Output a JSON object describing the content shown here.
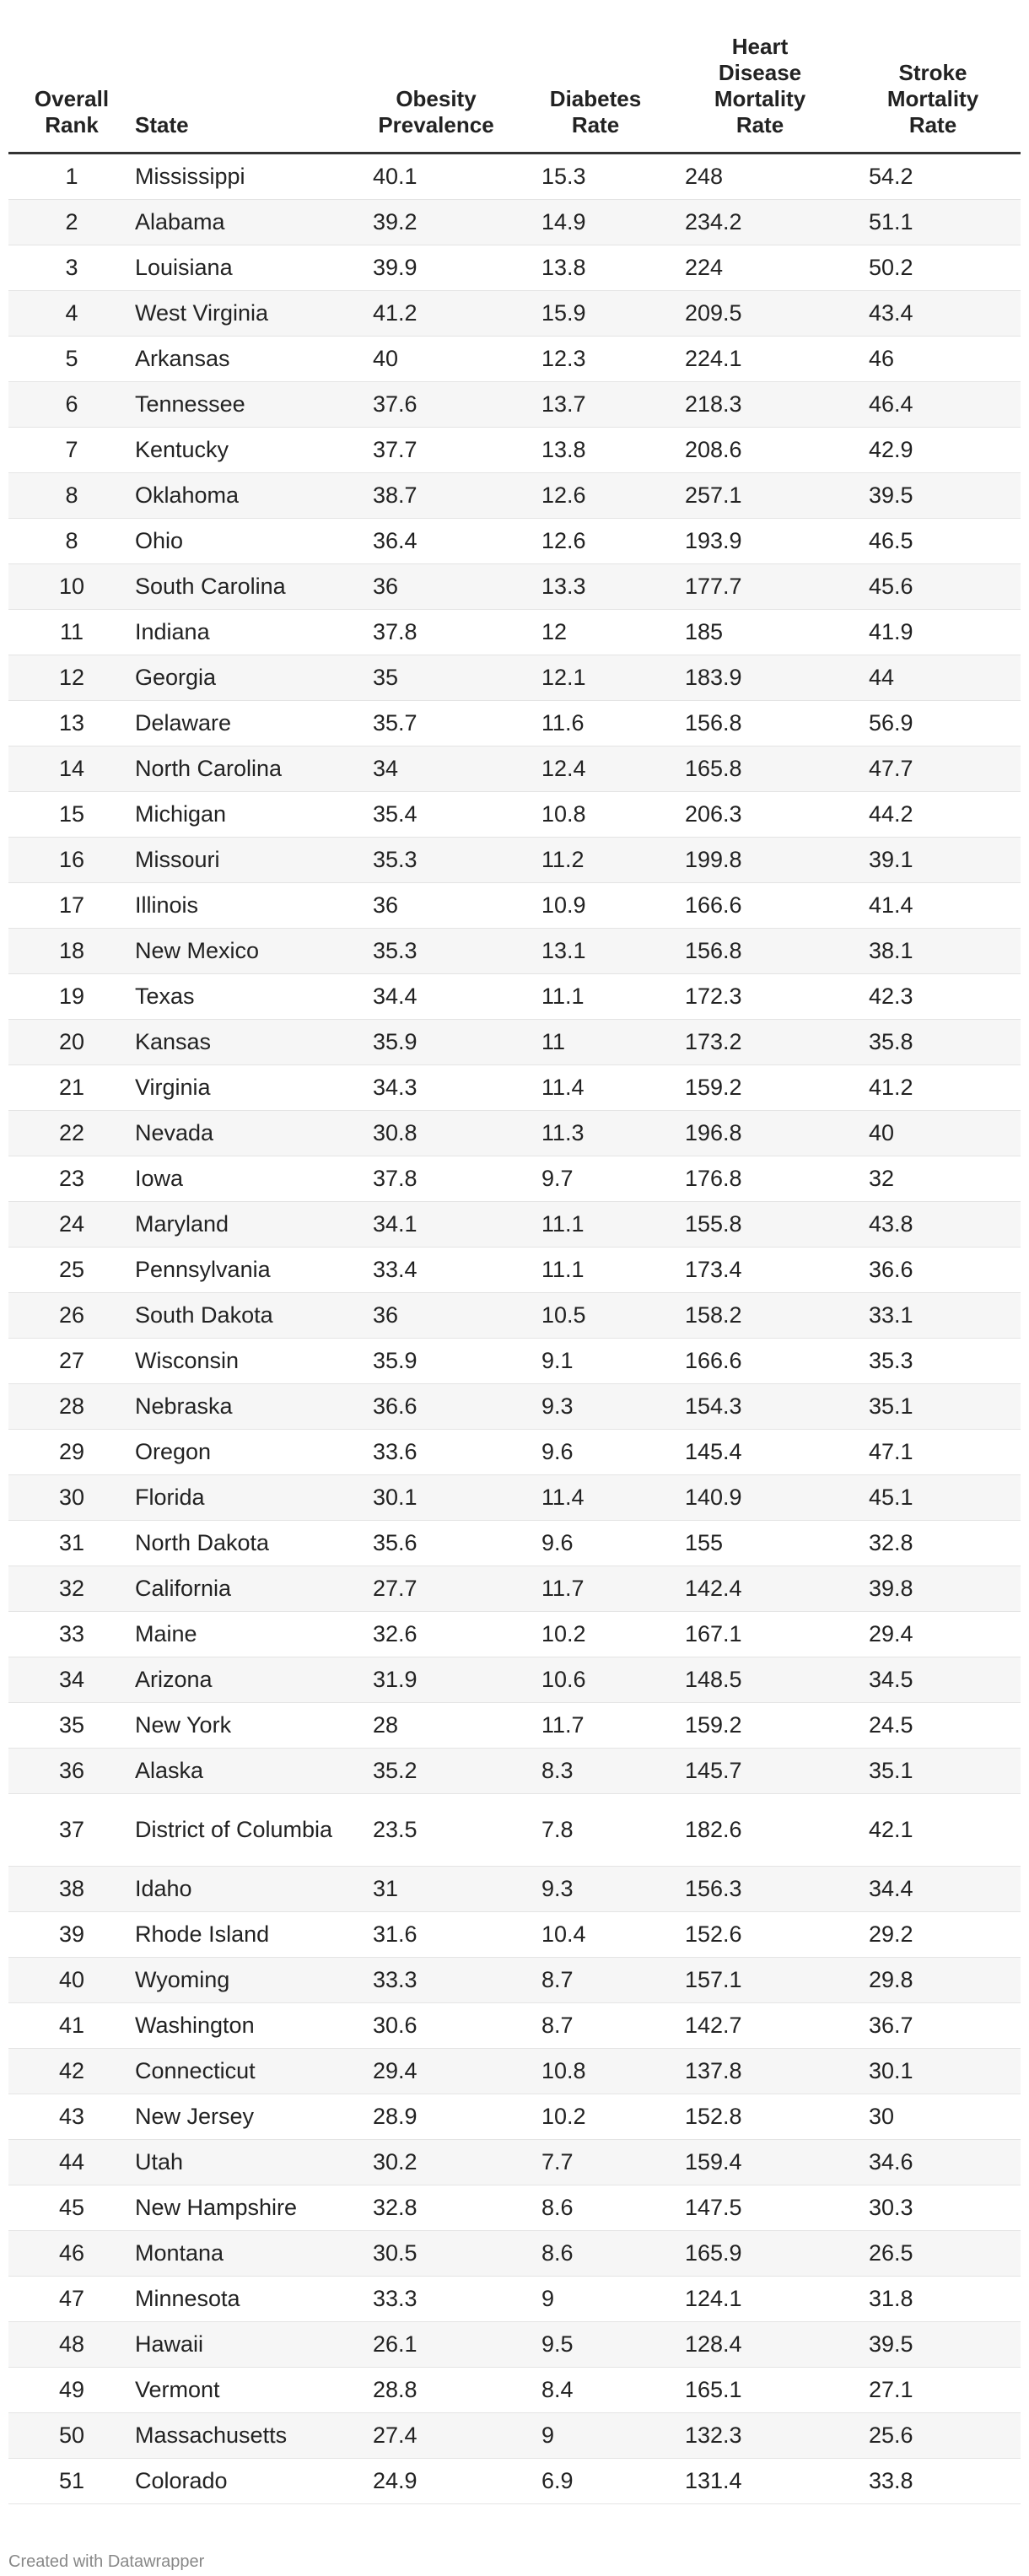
{
  "table": {
    "columns": [
      {
        "key": "rank",
        "lines": [
          "Overall",
          "Rank"
        ]
      },
      {
        "key": "state",
        "lines": [
          "State"
        ]
      },
      {
        "key": "obesity",
        "lines": [
          "Obesity",
          "Prevalence"
        ]
      },
      {
        "key": "diabetes",
        "lines": [
          "Diabetes",
          "Rate"
        ]
      },
      {
        "key": "heart",
        "lines": [
          "Heart",
          "Disease",
          "Mortality",
          "Rate"
        ]
      },
      {
        "key": "stroke",
        "lines": [
          "Stroke",
          "Mortality",
          "Rate"
        ]
      }
    ],
    "rows": [
      [
        "1",
        "Mississippi",
        "40.1",
        "15.3",
        "248",
        "54.2"
      ],
      [
        "2",
        "Alabama",
        "39.2",
        "14.9",
        "234.2",
        "51.1"
      ],
      [
        "3",
        "Louisiana",
        "39.9",
        "13.8",
        "224",
        "50.2"
      ],
      [
        "4",
        "West Virginia",
        "41.2",
        "15.9",
        "209.5",
        "43.4"
      ],
      [
        "5",
        "Arkansas",
        "40",
        "12.3",
        "224.1",
        "46"
      ],
      [
        "6",
        "Tennessee",
        "37.6",
        "13.7",
        "218.3",
        "46.4"
      ],
      [
        "7",
        "Kentucky",
        "37.7",
        "13.8",
        "208.6",
        "42.9"
      ],
      [
        "8",
        "Oklahoma",
        "38.7",
        "12.6",
        "257.1",
        "39.5"
      ],
      [
        "8",
        "Ohio",
        "36.4",
        "12.6",
        "193.9",
        "46.5"
      ],
      [
        "10",
        "South Carolina",
        "36",
        "13.3",
        "177.7",
        "45.6"
      ],
      [
        "11",
        "Indiana",
        "37.8",
        "12",
        "185",
        "41.9"
      ],
      [
        "12",
        "Georgia",
        "35",
        "12.1",
        "183.9",
        "44"
      ],
      [
        "13",
        "Delaware",
        "35.7",
        "11.6",
        "156.8",
        "56.9"
      ],
      [
        "14",
        "North Carolina",
        "34",
        "12.4",
        "165.8",
        "47.7"
      ],
      [
        "15",
        "Michigan",
        "35.4",
        "10.8",
        "206.3",
        "44.2"
      ],
      [
        "16",
        "Missouri",
        "35.3",
        "11.2",
        "199.8",
        "39.1"
      ],
      [
        "17",
        "Illinois",
        "36",
        "10.9",
        "166.6",
        "41.4"
      ],
      [
        "18",
        "New Mexico",
        "35.3",
        "13.1",
        "156.8",
        "38.1"
      ],
      [
        "19",
        "Texas",
        "34.4",
        "11.1",
        "172.3",
        "42.3"
      ],
      [
        "20",
        "Kansas",
        "35.9",
        "11",
        "173.2",
        "35.8"
      ],
      [
        "21",
        "Virginia",
        "34.3",
        "11.4",
        "159.2",
        "41.2"
      ],
      [
        "22",
        "Nevada",
        "30.8",
        "11.3",
        "196.8",
        "40"
      ],
      [
        "23",
        "Iowa",
        "37.8",
        "9.7",
        "176.8",
        "32"
      ],
      [
        "24",
        "Maryland",
        "34.1",
        "11.1",
        "155.8",
        "43.8"
      ],
      [
        "25",
        "Pennsylvania",
        "33.4",
        "11.1",
        "173.4",
        "36.6"
      ],
      [
        "26",
        "South Dakota",
        "36",
        "10.5",
        "158.2",
        "33.1"
      ],
      [
        "27",
        "Wisconsin",
        "35.9",
        "9.1",
        "166.6",
        "35.3"
      ],
      [
        "28",
        "Nebraska",
        "36.6",
        "9.3",
        "154.3",
        "35.1"
      ],
      [
        "29",
        "Oregon",
        "33.6",
        "9.6",
        "145.4",
        "47.1"
      ],
      [
        "30",
        "Florida",
        "30.1",
        "11.4",
        "140.9",
        "45.1"
      ],
      [
        "31",
        "North Dakota",
        "35.6",
        "9.6",
        "155",
        "32.8"
      ],
      [
        "32",
        "California",
        "27.7",
        "11.7",
        "142.4",
        "39.8"
      ],
      [
        "33",
        "Maine",
        "32.6",
        "10.2",
        "167.1",
        "29.4"
      ],
      [
        "34",
        "Arizona",
        "31.9",
        "10.6",
        "148.5",
        "34.5"
      ],
      [
        "35",
        "New York",
        "28",
        "11.7",
        "159.2",
        "24.5"
      ],
      [
        "36",
        "Alaska",
        "35.2",
        "8.3",
        "145.7",
        "35.1"
      ],
      [
        "37",
        "District of Columbia",
        "23.5",
        "7.8",
        "182.6",
        "42.1"
      ],
      [
        "38",
        "Idaho",
        "31",
        "9.3",
        "156.3",
        "34.4"
      ],
      [
        "39",
        "Rhode Island",
        "31.6",
        "10.4",
        "152.6",
        "29.2"
      ],
      [
        "40",
        "Wyoming",
        "33.3",
        "8.7",
        "157.1",
        "29.8"
      ],
      [
        "41",
        "Washington",
        "30.6",
        "8.7",
        "142.7",
        "36.7"
      ],
      [
        "42",
        "Connecticut",
        "29.4",
        "10.8",
        "137.8",
        "30.1"
      ],
      [
        "43",
        "New Jersey",
        "28.9",
        "10.2",
        "152.8",
        "30"
      ],
      [
        "44",
        "Utah",
        "30.2",
        "7.7",
        "159.4",
        "34.6"
      ],
      [
        "45",
        "New Hampshire",
        "32.8",
        "8.6",
        "147.5",
        "30.3"
      ],
      [
        "46",
        "Montana",
        "30.5",
        "8.6",
        "165.9",
        "26.5"
      ],
      [
        "47",
        "Minnesota",
        "33.3",
        "9",
        "124.1",
        "31.8"
      ],
      [
        "48",
        "Hawaii",
        "26.1",
        "9.5",
        "128.4",
        "39.5"
      ],
      [
        "49",
        "Vermont",
        "28.8",
        "8.4",
        "165.1",
        "27.1"
      ],
      [
        "50",
        "Massachusetts",
        "27.4",
        "9",
        "132.3",
        "25.6"
      ],
      [
        "51",
        "Colorado",
        "24.9",
        "6.9",
        "131.4",
        "33.8"
      ]
    ]
  },
  "footer": {
    "credit": "Created with Datawrapper"
  }
}
